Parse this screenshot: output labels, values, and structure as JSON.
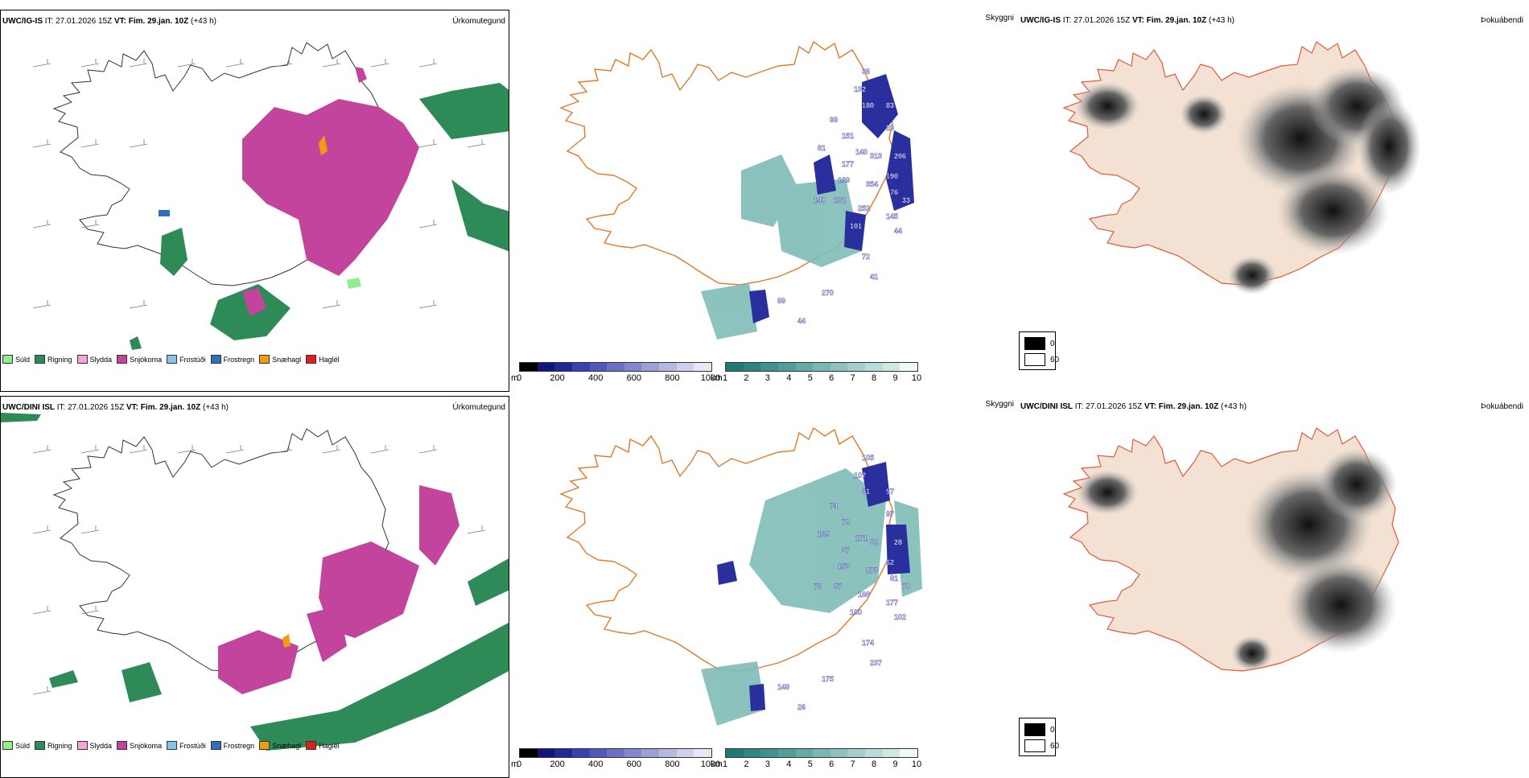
{
  "rows": [
    {
      "model": "UWC/IG-IS",
      "it_label": "IT:",
      "it_value": "27.01.2026 15Z",
      "vt_label": "VT:",
      "vt_value": "Fim. 29.jan. 10Z",
      "lead": "(+43 h)"
    },
    {
      "model": "UWC/DINI ISL",
      "it_label": "IT:",
      "it_value": "27.01.2026 15Z",
      "vt_label": "VT:",
      "vt_value": "Fim. 29.jan. 10Z",
      "lead": "(+43 h)"
    }
  ],
  "panel_titles": {
    "precip": "Úrkomutegund",
    "visibility": "Skyggni",
    "fog": "Þokuábendi"
  },
  "precip_legend": [
    {
      "label": "Súld",
      "color": "#90ee90"
    },
    {
      "label": "Rigning",
      "color": "#2e8b57"
    },
    {
      "label": "Slydda",
      "color": "#f4a6d8"
    },
    {
      "label": "Snjókoma",
      "color": "#c2449c"
    },
    {
      "label": "Frostúði",
      "color": "#87c3ef"
    },
    {
      "label": "Frostregn",
      "color": "#2f6fc0"
    },
    {
      "label": "Snæhagl",
      "color": "#f39c12"
    },
    {
      "label": "Haglél",
      "color": "#e11e1e"
    }
  ],
  "ceiling_bar": {
    "unit": "m",
    "ticks": [
      "0",
      "200",
      "400",
      "600",
      "800",
      "1000"
    ],
    "colors": [
      "#000000",
      "#14147a",
      "#1f2a9a",
      "#3a41b0",
      "#5357bb",
      "#6c70c4",
      "#8487cd",
      "#9da0d7",
      "#b6b8e1",
      "#cfd0eb",
      "#e7e8f5"
    ]
  },
  "visibility_bar": {
    "unit": "km",
    "ticks": [
      "1",
      "2",
      "3",
      "4",
      "5",
      "6",
      "7",
      "8",
      "9",
      "10"
    ],
    "colors": [
      "#1f7a73",
      "#2f8680",
      "#40928c",
      "#529e99",
      "#66aaa6",
      "#7ab6b3",
      "#8fc2bf",
      "#a4cecc",
      "#b9dbd9",
      "#cfe8e6",
      "#f2f8f8"
    ]
  },
  "fog_legend": {
    "items": [
      {
        "label": "0",
        "color": "#000000"
      },
      {
        "label": "60",
        "color": "#ffffff"
      }
    ]
  },
  "ceiling_labels": [
    [
      "36",
      "132",
      "180",
      "83",
      "99",
      "29",
      "151",
      "140",
      "81",
      "313",
      "206",
      "177",
      "199",
      "190",
      "354",
      "76",
      "140",
      "182",
      "252",
      "145",
      "44",
      "101",
      "72",
      "41",
      "270",
      "89",
      "44",
      "33"
    ],
    [
      "105",
      "107",
      "61",
      "57",
      "74",
      "97",
      "79",
      "171",
      "169",
      "82",
      "28",
      "37",
      "153",
      "62",
      "273",
      "81",
      "76",
      "87",
      "188",
      "177",
      "102",
      "190",
      "174",
      "237",
      "175",
      "148",
      "26",
      "70"
    ]
  ]
}
